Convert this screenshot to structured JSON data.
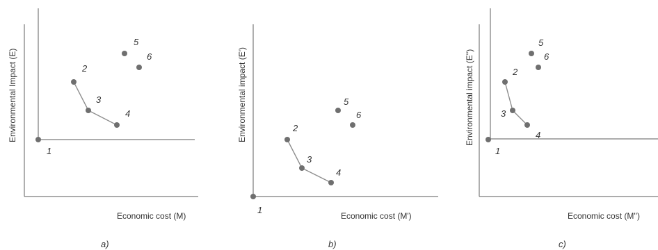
{
  "panels": [
    {
      "caption": "a)",
      "xlabel": "Economic cost (M)",
      "ylabel": "Environmental Impact (E)",
      "points": [
        {
          "label": "1",
          "x": 0,
          "y": 0
        },
        {
          "label": "2",
          "x": 2.5,
          "y": 4
        },
        {
          "label": "3",
          "x": 3.5,
          "y": 2
        },
        {
          "label": "4",
          "x": 5.5,
          "y": 1
        },
        {
          "label": "5",
          "x": 6,
          "y": 6
        },
        {
          "label": "6",
          "x": 7,
          "y": 5
        }
      ],
      "connected": [
        "2",
        "3",
        "4"
      ]
    },
    {
      "caption": "b)",
      "xlabel": "Economic cost (M')",
      "ylabel": "Environmental impact (E')",
      "points": [
        {
          "label": "1",
          "x": 0,
          "y": 0
        },
        {
          "label": "2",
          "x": 2.3,
          "y": 4
        },
        {
          "label": "3",
          "x": 3.3,
          "y": 2
        },
        {
          "label": "4",
          "x": 5.3,
          "y": 1
        },
        {
          "label": "5",
          "x": 5.8,
          "y": 5
        },
        {
          "label": "6",
          "x": 6.8,
          "y": 4
        }
      ],
      "connected": [
        "2",
        "3",
        "4"
      ]
    },
    {
      "caption": "c)",
      "xlabel": "Economic cost (M'')",
      "ylabel": "Environmental impact (E'')",
      "points": [
        {
          "label": "1",
          "x": 0,
          "y": 0
        },
        {
          "label": "2",
          "x": 1.2,
          "y": 4
        },
        {
          "label": "3",
          "x": 1.7,
          "y": 2
        },
        {
          "label": "4",
          "x": 2.7,
          "y": 1
        },
        {
          "label": "5",
          "x": 3,
          "y": 6
        },
        {
          "label": "6",
          "x": 3.5,
          "y": 5
        }
      ],
      "connected": [
        "2",
        "3",
        "4"
      ]
    }
  ]
}
